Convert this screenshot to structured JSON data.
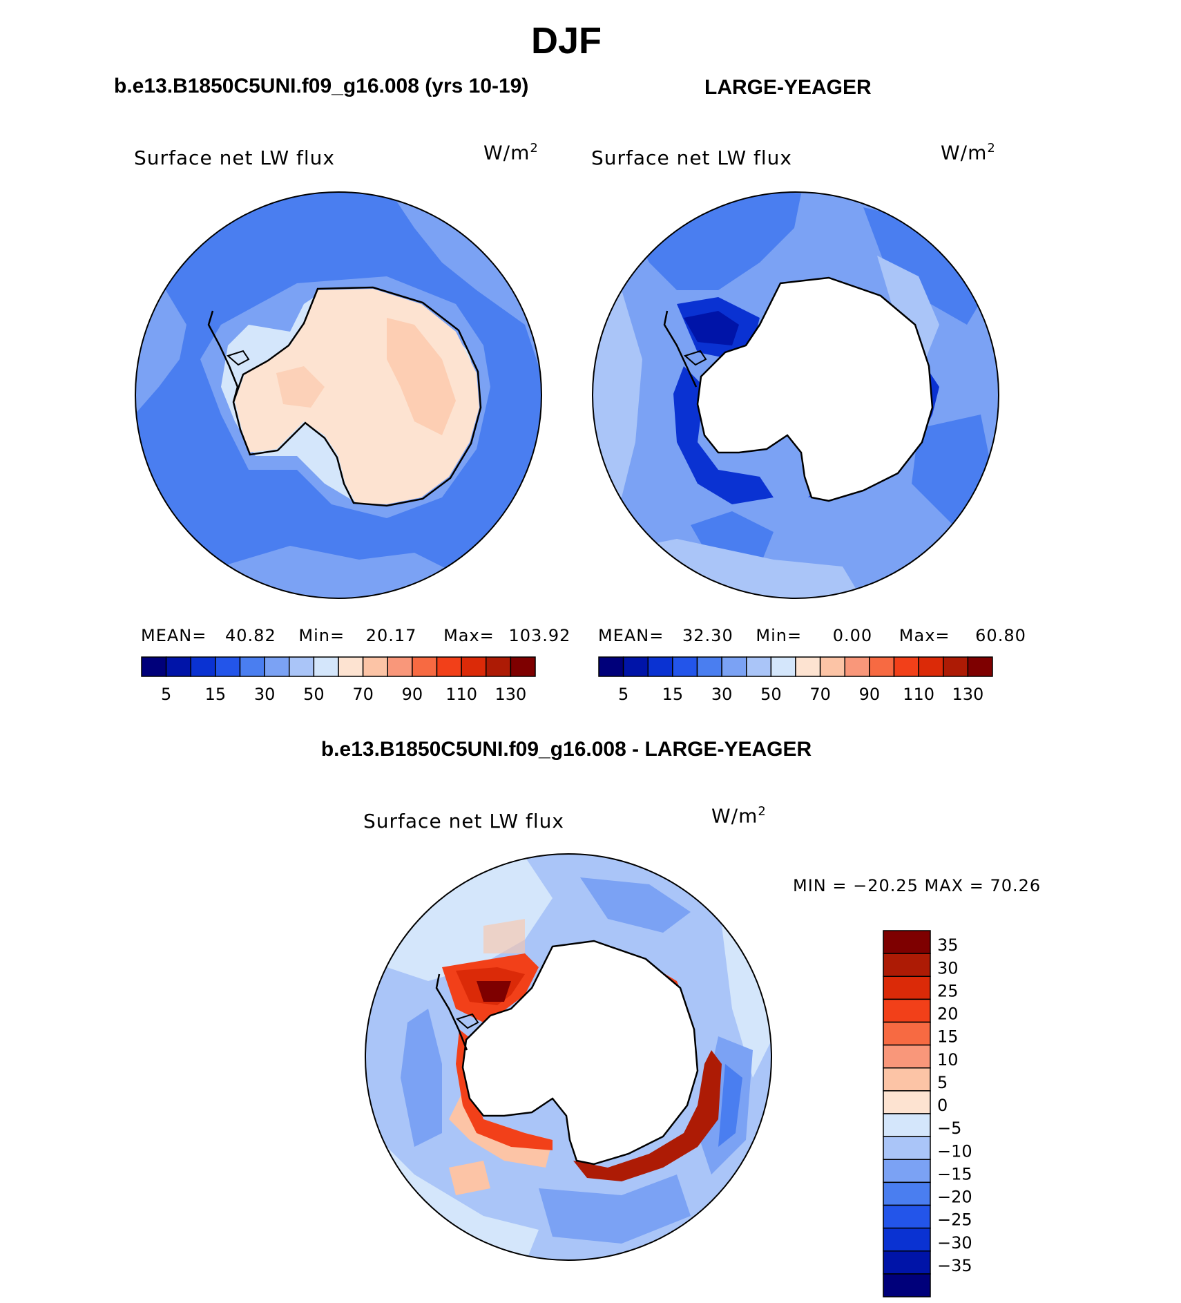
{
  "figure": {
    "season": "DJF",
    "case_title": "b.e13.B1850C5UNI.f09_g16.008 (yrs 10-19)",
    "control_title": "LARGE-YEAGER",
    "difference_title": "b.e13.B1850C5UNI.f09_g16.008 - LARGE-YEAGER"
  },
  "panels": [
    {
      "variable": "Surface net LW flux",
      "units": "W/m",
      "units_exp": "2",
      "stats": {
        "mean_label": "MEAN=",
        "mean": "40.82",
        "min_label": "Min=",
        "min": "20.17",
        "max_label": "Max=",
        "max": "103.92"
      }
    },
    {
      "variable": "Surface net LW flux",
      "units": "W/m",
      "units_exp": "2",
      "stats": {
        "mean_label": "MEAN=",
        "mean": "32.30",
        "min_label": "Min=",
        "min": "0.00",
        "max_label": "Max=",
        "max": "60.80"
      }
    },
    {
      "variable": "Surface net LW flux",
      "units": "W/m",
      "units_exp": "2",
      "minmax_text": "MIN = −20.25 MAX =   70.26"
    }
  ],
  "colorbars": {
    "absolute": {
      "colors": [
        "#00007a",
        "#0014a8",
        "#0a32d2",
        "#2355ea",
        "#4a7ef0",
        "#7ba2f4",
        "#aac5f8",
        "#d4e6fb",
        "#fde3d1",
        "#fcc4a6",
        "#f9977a",
        "#f76a42",
        "#f24019",
        "#db2a08",
        "#ad1b05",
        "#7e0000"
      ],
      "tick_labels": [
        "5",
        "15",
        "30",
        "50",
        "70",
        "90",
        "110",
        "130"
      ]
    },
    "difference": {
      "colors": [
        "#7e0000",
        "#ad1b05",
        "#db2a08",
        "#f24019",
        "#f76a42",
        "#f9977a",
        "#fcc4a6",
        "#fde3d1",
        "#d4e6fb",
        "#aac5f8",
        "#7ba2f4",
        "#4a7ef0",
        "#2355ea",
        "#0a32d2",
        "#0014a8",
        "#00007a"
      ],
      "tick_labels": [
        "35",
        "30",
        "25",
        "20",
        "15",
        "10",
        "5",
        "0",
        "−5",
        "−10",
        "−15",
        "−20",
        "−25",
        "−30",
        "−35"
      ]
    }
  },
  "map_colors": {
    "ocean_mean": "#4a7ef0",
    "ocean_light": "#7ba2f4",
    "ocean_pale": "#aac5f8",
    "ocean_verypale": "#d4e6fb",
    "land_warm": "#fde3d1",
    "land_warm2": "#fcc4a6",
    "strong_blue": "#0a32d2",
    "deep_blue": "#0014a8",
    "red1": "#f24019",
    "red2": "#db2a08",
    "red3": "#ad1b05",
    "red4": "#7e0000",
    "pos_pale": "#fcc4a6",
    "no_data": "#ffffff",
    "coast": "#000000"
  }
}
